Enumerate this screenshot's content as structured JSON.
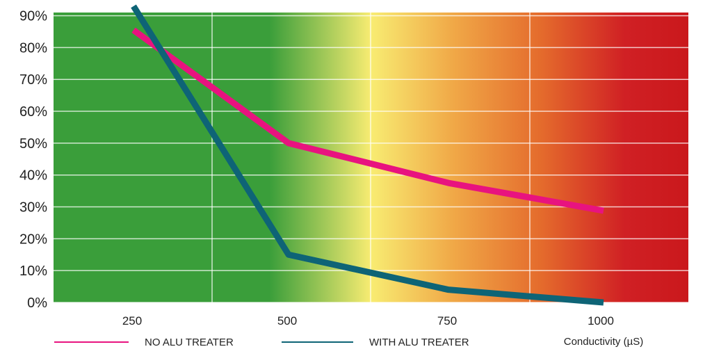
{
  "chart_data": {
    "type": "line",
    "x": [
      250,
      500,
      750,
      1000
    ],
    "xlabel": "Conductivity (µS)",
    "x_ticks": [
      "250",
      "500",
      "750",
      "1000"
    ],
    "y_ticks": [
      "0%",
      "10%",
      "20%",
      "30%",
      "40%",
      "50%",
      "60%",
      "70%",
      "80%",
      "90%"
    ],
    "ylim": [
      0,
      90
    ],
    "grid": true,
    "legend_position": "bottom",
    "background_gradient": [
      "#3a9e3a",
      "#3a9e3a",
      "#f8ec72",
      "#f0a847",
      "#e46a2c",
      "#d02024",
      "#ca181c"
    ],
    "series": [
      {
        "name": "NO ALU TREATER",
        "color": "#e8137f",
        "values": [
          85.5,
          50,
          37.5,
          28.8
        ]
      },
      {
        "name": "WITH ALU TREATER",
        "color": "#0e6476",
        "values": [
          93,
          15,
          4,
          0
        ]
      }
    ],
    "legend": [
      {
        "label": "NO ALU TREATER",
        "color": "#e8137f"
      },
      {
        "label": "WITH ALU TREATER",
        "color": "#0e6476"
      }
    ]
  }
}
